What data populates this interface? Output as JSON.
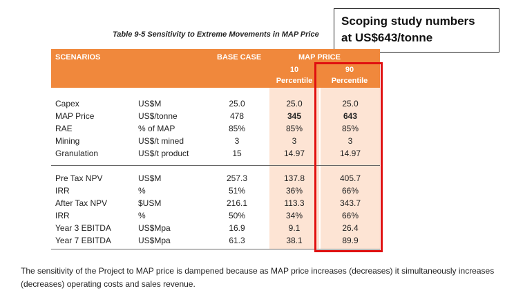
{
  "caption": "Table 9-5  Sensitivity to Extreme Movements in MAP Price",
  "callout": {
    "line1": "Scoping study numbers",
    "line2": "at US$643/tonne"
  },
  "table": {
    "headers": {
      "scenarios": "SCENARIOS",
      "base_case": "BASE CASE",
      "map_price": "MAP PRICE",
      "col10_a": "10",
      "col10_b": "Percentile",
      "col90_a": "90",
      "col90_b": "Percentile"
    },
    "group1": [
      {
        "label": "Capex",
        "unit": "US$M",
        "base": "25.0",
        "p10": "25.0",
        "p90": "25.0"
      },
      {
        "label": "MAP Price",
        "unit": "US$/tonne",
        "base": "478",
        "p10": "345",
        "p90": "643"
      },
      {
        "label": "RAE",
        "unit": "% of MAP",
        "base": "85%",
        "p10": "85%",
        "p90": "85%"
      },
      {
        "label": "Mining",
        "unit": "US$/t mined",
        "base": "3",
        "p10": "3",
        "p90": "3"
      },
      {
        "label": "Granulation",
        "unit": "US$/t product",
        "base": "15",
        "p10": "14.97",
        "p90": "14.97"
      }
    ],
    "group2": [
      {
        "label": "Pre Tax NPV",
        "unit": "US$M",
        "base": "257.3",
        "p10": "137.8",
        "p90": "405.7"
      },
      {
        "label": "IRR",
        "unit": "%",
        "base": "51%",
        "p10": "36%",
        "p90": "66%"
      },
      {
        "label": "After Tax NPV",
        "unit": "$USM",
        "base": "216.1",
        "p10": "113.3",
        "p90": "343.7"
      },
      {
        "label": "IRR",
        "unit": "%",
        "base": "50%",
        "p10": "34%",
        "p90": "66%"
      },
      {
        "label": "Year 3 EBITDA",
        "unit": "US$Mpa",
        "base": "16.9",
        "p10": "9.1",
        "p90": "26.4"
      },
      {
        "label": "Year 7 EBITDA",
        "unit": "US$Mpa",
        "base": "61.3",
        "p10": "38.1",
        "p90": "89.9"
      }
    ]
  },
  "paragraph": "The sensitivity of the Project to MAP price is dampened because as MAP price increases (decreases) it simultaneously increases (decreases) operating costs and sales revenue."
}
